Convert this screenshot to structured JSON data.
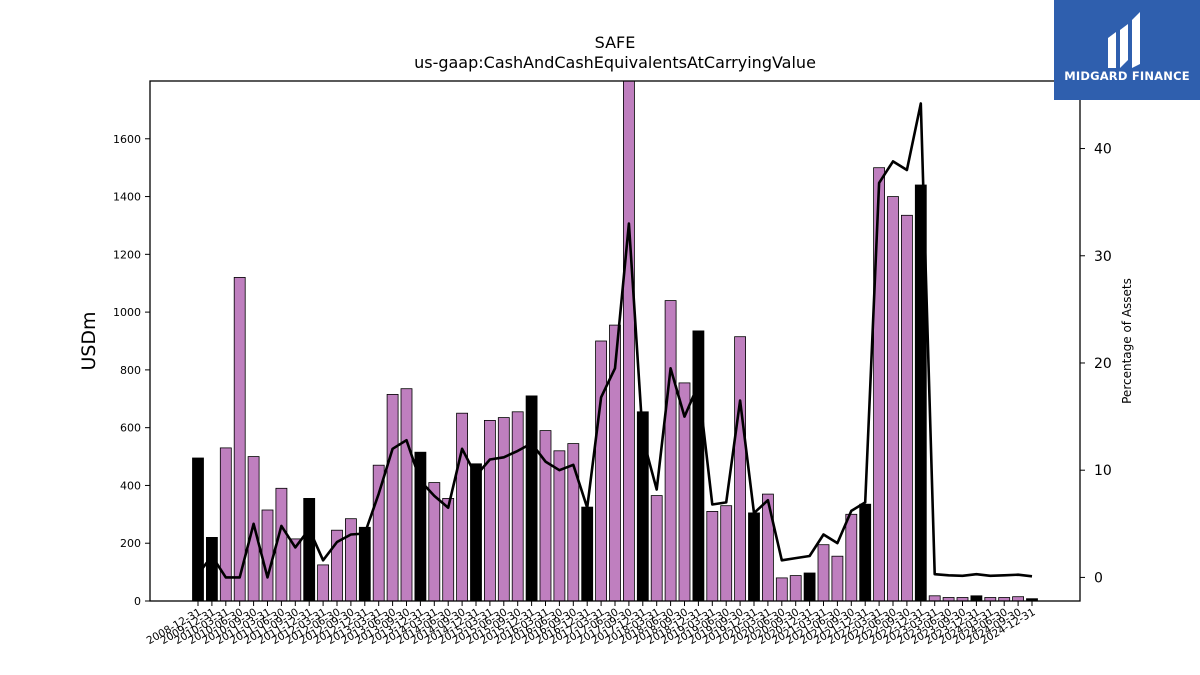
{
  "brand": {
    "name": "MIDGARD FINANCE",
    "logo_icon": "midgard-m-icon",
    "color": "#2f5fae"
  },
  "chart_data": {
    "type": "bar",
    "title": "SAFE",
    "subtitle": "us-gaap:CashAndCashEquivalentsAtCarryingValue",
    "ylabel": "USDm",
    "y2label": "Percentage of Assets",
    "ylim": [
      0,
      1800
    ],
    "y2lim": [
      -2.2,
      46.3
    ],
    "yticks": [
      0,
      200,
      400,
      600,
      800,
      1000,
      1200,
      1400,
      1600
    ],
    "y2ticks": [
      0,
      10,
      20,
      30,
      40
    ],
    "colors": {
      "quarter_bar": "#bf7fbf",
      "annual_bar": "#000000",
      "line": "#000000"
    },
    "legend": "none",
    "grid": false,
    "categories": [
      "2008-12-31",
      "2009-12-31",
      "2010-03-31",
      "2010-06-30",
      "2010-09-30",
      "2011-03-31",
      "2011-06-30",
      "2011-09-30",
      "2011-12-31",
      "2012-03-31",
      "2012-06-30",
      "2012-09-30",
      "2012-12-31",
      "2013-03-31",
      "2013-06-30",
      "2013-09-30",
      "2013-12-31",
      "2014-03-31",
      "2014-06-30",
      "2014-09-30",
      "2014-12-31",
      "2015-03-31",
      "2015-06-30",
      "2015-09-30",
      "2015-12-31",
      "2016-03-31",
      "2016-06-30",
      "2016-09-30",
      "2016-12-31",
      "2017-03-31",
      "2017-06-30",
      "2017-09-30",
      "2017-12-31",
      "2018-03-31",
      "2018-06-30",
      "2018-09-30",
      "2018-12-31",
      "2019-03-31",
      "2019-06-30",
      "2019-09-30",
      "2019-12-31",
      "2020-03-31",
      "2020-06-30",
      "2020-09-30",
      "2020-12-31",
      "2021-03-31",
      "2021-06-30",
      "2021-09-30",
      "2021-12-31",
      "2022-03-31",
      "2022-06-30",
      "2022-09-30",
      "2022-12-31",
      "2023-03-31",
      "2023-06-30",
      "2023-09-30",
      "2023-12-31",
      "2024-03-31",
      "2024-06-30",
      "2024-09-30",
      "2024-12-31"
    ],
    "series": [
      {
        "values": [
          495,
          220,
          530,
          1120,
          500,
          315,
          390,
          215,
          355,
          125,
          245,
          285,
          255,
          470,
          715,
          735,
          515,
          410,
          355,
          650,
          475,
          625,
          635,
          655,
          710,
          590,
          520,
          545,
          325,
          900,
          955,
          1800,
          655,
          365,
          1040,
          755,
          935,
          310,
          330,
          915,
          305,
          370,
          80,
          88,
          97,
          195,
          155,
          300,
          335,
          1500,
          1400,
          1335,
          1440,
          18,
          12,
          12,
          18,
          12,
          12,
          15,
          8
        ],
        "annual": [
          true,
          true,
          false,
          false,
          false,
          false,
          false,
          false,
          true,
          false,
          false,
          false,
          true,
          false,
          false,
          false,
          true,
          false,
          false,
          false,
          true,
          false,
          false,
          false,
          true,
          false,
          false,
          false,
          true,
          false,
          false,
          false,
          true,
          false,
          false,
          false,
          true,
          false,
          false,
          false,
          true,
          false,
          false,
          false,
          true,
          false,
          false,
          false,
          true,
          false,
          false,
          false,
          true,
          false,
          false,
          false,
          true,
          false,
          false,
          false,
          true
        ]
      },
      {
        "values": [
          0.3,
          2.0,
          0.0,
          0.0,
          5.0,
          0.0,
          4.8,
          2.8,
          4.5,
          1.6,
          3.3,
          4.0,
          4.1,
          7.8,
          12.0,
          12.8,
          9.0,
          7.6,
          6.5,
          12.0,
          9.5,
          11.0,
          11.2,
          11.8,
          12.5,
          10.8,
          10.0,
          10.5,
          6.5,
          16.8,
          19.5,
          33.0,
          13.0,
          8.2,
          19.5,
          15.0,
          18.0,
          6.8,
          7.0,
          16.5,
          6.0,
          7.2,
          1.6,
          1.8,
          2.0,
          4.0,
          3.2,
          6.2,
          7.0,
          36.8,
          38.8,
          38.0,
          44.2,
          0.3,
          0.2,
          0.15,
          0.3,
          0.15,
          0.2,
          0.25,
          0.1
        ]
      }
    ]
  }
}
